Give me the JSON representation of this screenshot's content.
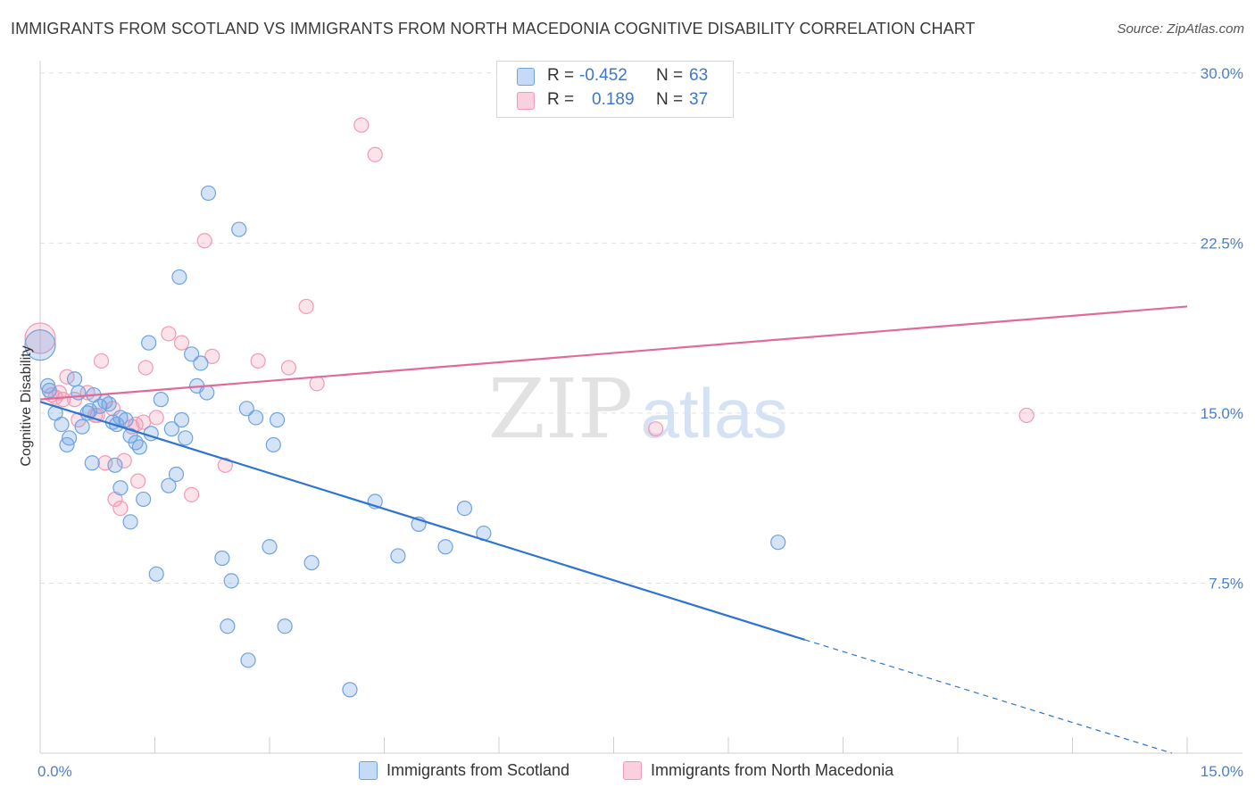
{
  "title": "IMMIGRANTS FROM SCOTLAND VS IMMIGRANTS FROM NORTH MACEDONIA COGNITIVE DISABILITY CORRELATION CHART",
  "source": "Source: ZipAtlas.com",
  "watermark": {
    "zip": "ZIP",
    "atlas": "atlas"
  },
  "legend": {
    "rows": [
      {
        "r_label": "R =",
        "r_value": "-0.452",
        "n_label": "N =",
        "n_value": "63"
      },
      {
        "r_label": "R =",
        "r_value": "0.189",
        "n_label": "N =",
        "n_value": "37"
      }
    ]
  },
  "chart_data": {
    "type": "scatter",
    "title": "IMMIGRANTS FROM SCOTLAND VS IMMIGRANTS FROM NORTH MACEDONIA COGNITIVE DISABILITY CORRELATION CHART",
    "xlabel": "",
    "ylabel": "Cognitive Disability",
    "xlim": [
      0,
      15
    ],
    "ylim": [
      0,
      31
    ],
    "x_tick_labels": [
      "0.0%",
      "15.0%"
    ],
    "y_ticks": [
      7.5,
      15,
      22.5,
      30
    ],
    "y_tick_labels": [
      "7.5%",
      "15.0%",
      "22.5%",
      "30.0%"
    ],
    "grid": true,
    "legend_position": "bottom",
    "colors": {
      "scotland": "#6fa3e0",
      "macedonia": "#f19ab5",
      "scotland_line": "#2f74d0",
      "macedonia_line": "#e06b9a"
    },
    "series": [
      {
        "name": "Immigrants from Scotland",
        "color": "#6fa3e0",
        "points": [
          [
            0.0,
            18.0
          ],
          [
            0.1,
            16.2
          ],
          [
            0.12,
            16.0
          ],
          [
            0.2,
            15.0
          ],
          [
            0.28,
            14.5
          ],
          [
            0.35,
            13.6
          ],
          [
            0.38,
            13.9
          ],
          [
            0.45,
            16.5
          ],
          [
            0.5,
            15.9
          ],
          [
            0.55,
            14.4
          ],
          [
            0.62,
            15.0
          ],
          [
            0.65,
            15.1
          ],
          [
            0.7,
            15.8
          ],
          [
            0.68,
            12.8
          ],
          [
            0.78,
            15.3
          ],
          [
            0.9,
            15.4
          ],
          [
            0.95,
            14.6
          ],
          [
            0.98,
            12.7
          ],
          [
            1.05,
            14.8
          ],
          [
            1.12,
            14.7
          ],
          [
            1.18,
            14.0
          ],
          [
            1.25,
            13.7
          ],
          [
            1.3,
            13.5
          ],
          [
            1.05,
            11.7
          ],
          [
            1.18,
            10.2
          ],
          [
            1.35,
            11.2
          ],
          [
            1.45,
            14.1
          ],
          [
            1.58,
            15.6
          ],
          [
            1.42,
            18.1
          ],
          [
            1.52,
            7.9
          ],
          [
            1.68,
            11.8
          ],
          [
            1.72,
            14.3
          ],
          [
            1.85,
            14.7
          ],
          [
            1.78,
            12.3
          ],
          [
            1.9,
            13.9
          ],
          [
            1.98,
            17.6
          ],
          [
            2.1,
            17.2
          ],
          [
            2.05,
            16.2
          ],
          [
            2.18,
            15.9
          ],
          [
            1.82,
            21.0
          ],
          [
            2.2,
            24.7
          ],
          [
            2.38,
            8.6
          ],
          [
            2.5,
            7.6
          ],
          [
            2.45,
            5.6
          ],
          [
            2.6,
            23.1
          ],
          [
            2.7,
            15.2
          ],
          [
            2.82,
            14.8
          ],
          [
            2.72,
            4.1
          ],
          [
            3.1,
            14.7
          ],
          [
            3.05,
            13.6
          ],
          [
            3.0,
            9.1
          ],
          [
            3.2,
            5.6
          ],
          [
            3.55,
            8.4
          ],
          [
            4.05,
            2.8
          ],
          [
            4.38,
            11.1
          ],
          [
            4.68,
            8.7
          ],
          [
            4.95,
            10.1
          ],
          [
            5.3,
            9.1
          ],
          [
            5.55,
            10.8
          ],
          [
            5.8,
            9.7
          ],
          [
            9.65,
            9.3
          ],
          [
            0.85,
            15.5
          ],
          [
            1.0,
            14.5
          ]
        ]
      },
      {
        "name": "Immigrants from North Macedonia",
        "color": "#f19ab5",
        "points": [
          [
            0.0,
            18.3
          ],
          [
            0.15,
            15.8
          ],
          [
            0.25,
            15.9
          ],
          [
            0.35,
            16.6
          ],
          [
            0.45,
            15.6
          ],
          [
            0.5,
            14.7
          ],
          [
            0.62,
            15.9
          ],
          [
            0.72,
            14.9
          ],
          [
            0.8,
            17.3
          ],
          [
            0.85,
            12.8
          ],
          [
            0.95,
            15.2
          ],
          [
            0.98,
            11.2
          ],
          [
            1.05,
            10.8
          ],
          [
            1.1,
            12.9
          ],
          [
            1.2,
            14.4
          ],
          [
            1.28,
            12.0
          ],
          [
            1.35,
            14.6
          ],
          [
            1.38,
            17.0
          ],
          [
            1.52,
            14.8
          ],
          [
            1.68,
            18.5
          ],
          [
            1.85,
            18.1
          ],
          [
            1.98,
            11.4
          ],
          [
            2.15,
            22.6
          ],
          [
            2.25,
            17.5
          ],
          [
            2.42,
            12.7
          ],
          [
            2.85,
            17.3
          ],
          [
            3.25,
            17.0
          ],
          [
            3.48,
            19.7
          ],
          [
            3.62,
            16.3
          ],
          [
            4.2,
            27.7
          ],
          [
            4.38,
            26.4
          ],
          [
            8.05,
            14.3
          ],
          [
            12.9,
            14.9
          ],
          [
            0.3,
            15.6
          ],
          [
            0.75,
            14.9
          ],
          [
            1.25,
            14.5
          ],
          [
            0.2,
            15.7
          ]
        ]
      }
    ],
    "trend_lines": [
      {
        "name": "Immigrants from Scotland",
        "x0": 0.0,
        "y0": 15.5,
        "x1": 10.0,
        "y1": 5.0,
        "dashed_to_x": 14.8,
        "dashed_to_y": 0.0
      },
      {
        "name": "Immigrants from North Macedonia",
        "x0": 0.0,
        "y0": 15.6,
        "x1": 15.0,
        "y1": 19.7
      }
    ]
  }
}
